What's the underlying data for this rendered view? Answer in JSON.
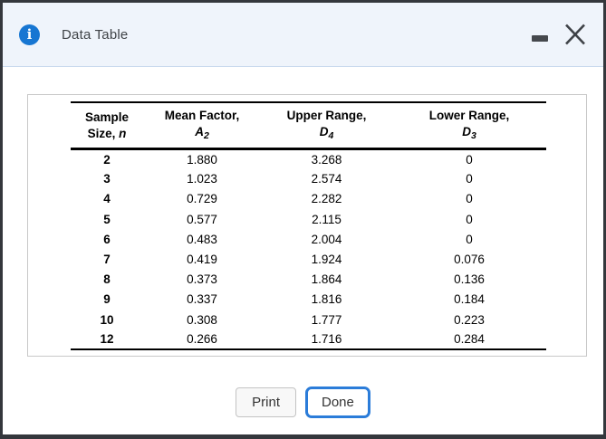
{
  "window": {
    "title": "Data Table"
  },
  "colors": {
    "accent": "#1776d2",
    "accent_strong": "#2b7cd9",
    "titlebar_bg": "#eff4fb",
    "titlebar_divider": "#c9d9ee",
    "frame_border": "#34373c"
  },
  "table": {
    "columns": [
      {
        "line1": "Sample",
        "line2_text": "Size, ",
        "symbol": "n",
        "subscript": ""
      },
      {
        "line1": "Mean Factor,",
        "line2_text": "",
        "symbol": "A",
        "subscript": "2"
      },
      {
        "line1": "Upper Range,",
        "line2_text": "",
        "symbol": "D",
        "subscript": "4"
      },
      {
        "line1": "Lower Range,",
        "line2_text": "",
        "symbol": "D",
        "subscript": "3"
      }
    ],
    "rows": [
      [
        "2",
        "1.880",
        "3.268",
        "0"
      ],
      [
        "3",
        "1.023",
        "2.574",
        "0"
      ],
      [
        "4",
        "0.729",
        "2.282",
        "0"
      ],
      [
        "5",
        "0.577",
        "2.115",
        "0"
      ],
      [
        "6",
        "0.483",
        "2.004",
        "0"
      ],
      [
        "7",
        "0.419",
        "1.924",
        "0.076"
      ],
      [
        "8",
        "0.373",
        "1.864",
        "0.136"
      ],
      [
        "9",
        "0.337",
        "1.816",
        "0.184"
      ],
      [
        "10",
        "0.308",
        "1.777",
        "0.223"
      ],
      [
        "12",
        "0.266",
        "1.716",
        "0.284"
      ]
    ]
  },
  "buttons": {
    "print": "Print",
    "done": "Done"
  },
  "icons": {
    "info": "i",
    "minimize": "minimize-icon",
    "close": "close-icon"
  }
}
